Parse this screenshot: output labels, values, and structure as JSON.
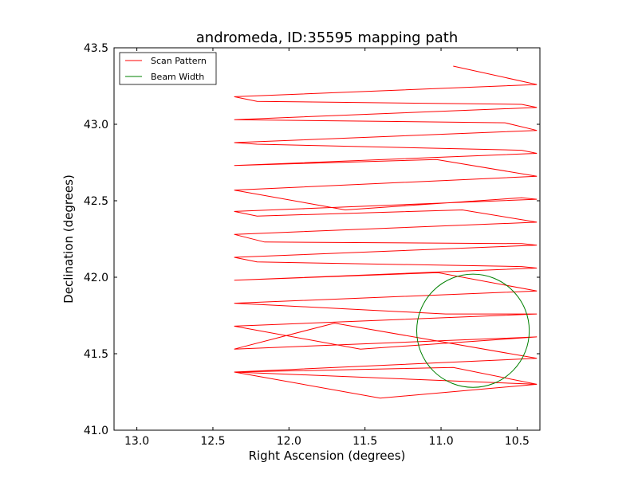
{
  "chart_data": {
    "type": "line",
    "title": "andromeda, ID:35595 mapping path",
    "xlabel": "Right Ascension (degrees)",
    "ylabel": "Declination (degrees)",
    "xlim": [
      13.15,
      10.35
    ],
    "ylim": [
      41.0,
      43.5
    ],
    "x_inverted": true,
    "xticks": [
      "13.0",
      "12.5",
      "12.0",
      "11.5",
      "11.0",
      "10.5"
    ],
    "xtick_values": [
      13.0,
      12.5,
      12.0,
      11.5,
      11.0,
      10.5
    ],
    "yticks": [
      "41.0",
      "41.5",
      "42.0",
      "42.5",
      "43.0",
      "43.5"
    ],
    "ytick_values": [
      41.0,
      41.5,
      42.0,
      42.5,
      43.0,
      43.5
    ],
    "grid": false,
    "legend_position": "top-left",
    "series": [
      {
        "name": "Scan Pattern",
        "color": "#ff0000",
        "x": [
          10.92,
          10.37,
          12.36,
          12.21,
          10.47,
          10.37,
          12.36,
          10.58,
          10.37,
          12.36,
          12.21,
          10.47,
          10.37,
          12.36,
          11.03,
          10.37,
          12.36,
          11.63,
          10.47,
          10.37,
          12.36,
          12.21,
          10.86,
          10.37,
          12.36,
          12.16,
          10.47,
          10.37,
          12.36,
          12.21,
          10.47,
          10.37,
          12.36,
          11.02,
          10.37,
          12.36,
          10.97,
          10.37,
          12.36,
          11.53,
          10.37,
          12.36,
          11.7,
          10.37,
          12.36,
          10.92,
          10.37,
          12.36,
          11.4,
          10.37
        ],
        "y": [
          43.38,
          43.26,
          43.18,
          43.15,
          43.13,
          43.11,
          43.03,
          43.01,
          42.96,
          42.88,
          42.87,
          42.83,
          42.81,
          42.73,
          42.77,
          42.66,
          42.57,
          42.44,
          42.52,
          42.51,
          42.43,
          42.4,
          42.44,
          42.36,
          42.28,
          42.23,
          42.22,
          42.21,
          42.13,
          42.1,
          42.07,
          42.06,
          41.98,
          42.03,
          41.91,
          41.83,
          41.76,
          41.76,
          41.68,
          41.53,
          41.61,
          41.53,
          41.7,
          41.47,
          41.38,
          41.41,
          41.3,
          41.38,
          41.21,
          41.3
        ]
      },
      {
        "name": "Beam Width",
        "color": "#008000",
        "shape": "circle",
        "center_x": 10.79,
        "center_y": 41.65,
        "radius_deg": 0.37
      }
    ]
  }
}
